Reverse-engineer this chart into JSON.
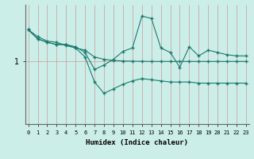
{
  "xlabel": "Humidex (Indice chaleur)",
  "background_color": "#cceee8",
  "grid_color": "#cc9999",
  "line_color": "#1a7a6e",
  "x": [
    0,
    1,
    2,
    3,
    4,
    5,
    6,
    7,
    8,
    9,
    10,
    11,
    12,
    13,
    14,
    15,
    16,
    17,
    18,
    19,
    20,
    21,
    22,
    23
  ],
  "y_line1": [
    1.28,
    1.22,
    1.18,
    1.17,
    1.14,
    1.12,
    1.1,
    1.04,
    1.02,
    1.01,
    1.005,
    1.003,
    1.002,
    1.001,
    1.001,
    1.001,
    1.001,
    1.001,
    1.001,
    1.001,
    1.001,
    1.001,
    1.001,
    1.001
  ],
  "y_line2": [
    1.28,
    1.2,
    1.17,
    1.15,
    1.15,
    1.13,
    1.08,
    0.93,
    0.97,
    1.02,
    1.09,
    1.12,
    1.4,
    1.38,
    1.12,
    1.08,
    0.95,
    1.13,
    1.05,
    1.1,
    1.08,
    1.06,
    1.05,
    1.05
  ],
  "y_line3": [
    1.28,
    1.2,
    1.17,
    1.15,
    1.15,
    1.12,
    1.04,
    0.82,
    0.72,
    0.76,
    0.8,
    0.83,
    0.85,
    0.84,
    0.83,
    0.82,
    0.82,
    0.82,
    0.81,
    0.81,
    0.81,
    0.81,
    0.81,
    0.81
  ],
  "ytick_label": "1",
  "ytick_value": 1.0,
  "xlim": [
    -0.3,
    23.3
  ],
  "ylim": [
    0.45,
    1.5
  ],
  "figsize": [
    3.2,
    2.0
  ],
  "dpi": 100
}
